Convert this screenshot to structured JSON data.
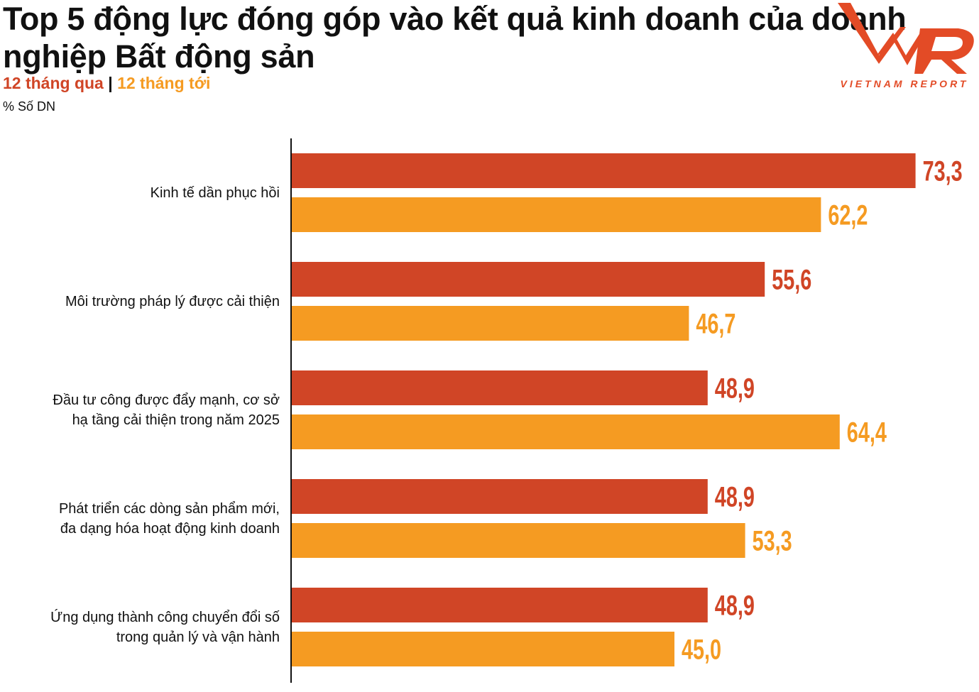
{
  "chart_data": {
    "type": "bar",
    "orientation": "horizontal",
    "title": "Top 5 động lực đóng góp vào kết quả kinh doanh của doanh nghiệp Bất động sản",
    "ylabel": "% Số DN",
    "categories": [
      [
        "Kinh tế dần phục hồi"
      ],
      [
        "Môi trường pháp lý được cải thiện"
      ],
      [
        "Đầu tư công được đẩy mạnh, cơ sở",
        "hạ tầng cải thiện trong năm 2025"
      ],
      [
        "Phát triển các dòng sản phẩm mới,",
        "đa dạng hóa hoạt động kinh doanh"
      ],
      [
        "Ứng dụng thành công chuyển đổi số",
        "trong quản lý và vận hành"
      ]
    ],
    "series": [
      {
        "name": "12 tháng qua",
        "color": "#D04526",
        "values": [
          73.3,
          55.6,
          48.9,
          48.9,
          48.9
        ],
        "labels": [
          "73,3",
          "55,6",
          "48,9",
          "48,9",
          "48,9"
        ]
      },
      {
        "name": "12 tháng tới",
        "color": "#F59B22",
        "values": [
          62.2,
          46.7,
          64.4,
          53.3,
          45.0
        ],
        "labels": [
          "62,2",
          "46,7",
          "64,4",
          "53,3",
          "45,0"
        ]
      }
    ],
    "xlim": [
      0,
      80
    ],
    "grid": false,
    "legend_placement": "top-left"
  },
  "logo": {
    "text": "VIETNAM REPORT",
    "mark": "VNR",
    "color": "#E34B26"
  }
}
